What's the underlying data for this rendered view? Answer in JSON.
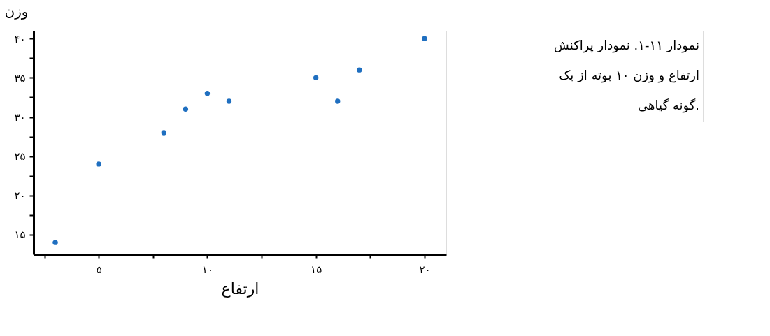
{
  "chart_data": {
    "type": "scatter",
    "xlabel": "ارتفاع",
    "ylabel": "وزن",
    "x": [
      3,
      5,
      8,
      9,
      10,
      11,
      15,
      16,
      17,
      20
    ],
    "series": [
      {
        "color": "#1f6fc0",
        "values": [
          14,
          24,
          28,
          31,
          33,
          32,
          35,
          32,
          36,
          40
        ]
      }
    ],
    "xlim": [
      2,
      21
    ],
    "ylim": [
      12.5,
      41
    ],
    "xticks": [
      {
        "value": 2.5,
        "label": null
      },
      {
        "value": 5,
        "label": "۵"
      },
      {
        "value": 7.5,
        "label": null
      },
      {
        "value": 10,
        "label": "۱۰"
      },
      {
        "value": 12.5,
        "label": null
      },
      {
        "value": 15,
        "label": "۱۵"
      },
      {
        "value": 17.5,
        "label": null
      },
      {
        "value": 20,
        "label": "۲۰"
      }
    ],
    "yticks": [
      {
        "value": 15,
        "label": "۱۵"
      },
      {
        "value": 17.5,
        "label": null
      },
      {
        "value": 20,
        "label": "۲۰"
      },
      {
        "value": 22.5,
        "label": null
      },
      {
        "value": 25,
        "label": "۲۵"
      },
      {
        "value": 27.5,
        "label": null
      },
      {
        "value": 30,
        "label": "۳۰"
      },
      {
        "value": 32.5,
        "label": null
      },
      {
        "value": 35,
        "label": "۳۵"
      },
      {
        "value": 37.5,
        "label": null
      },
      {
        "value": 40,
        "label": "۴۰"
      }
    ],
    "annotations": [
      "نمودار ۱۱-۱. نمودار پراکنش ارتفاع و وزن ۱۰ بوته از یک گونه گیاهی."
    ],
    "marker": "circle",
    "grid": false
  }
}
